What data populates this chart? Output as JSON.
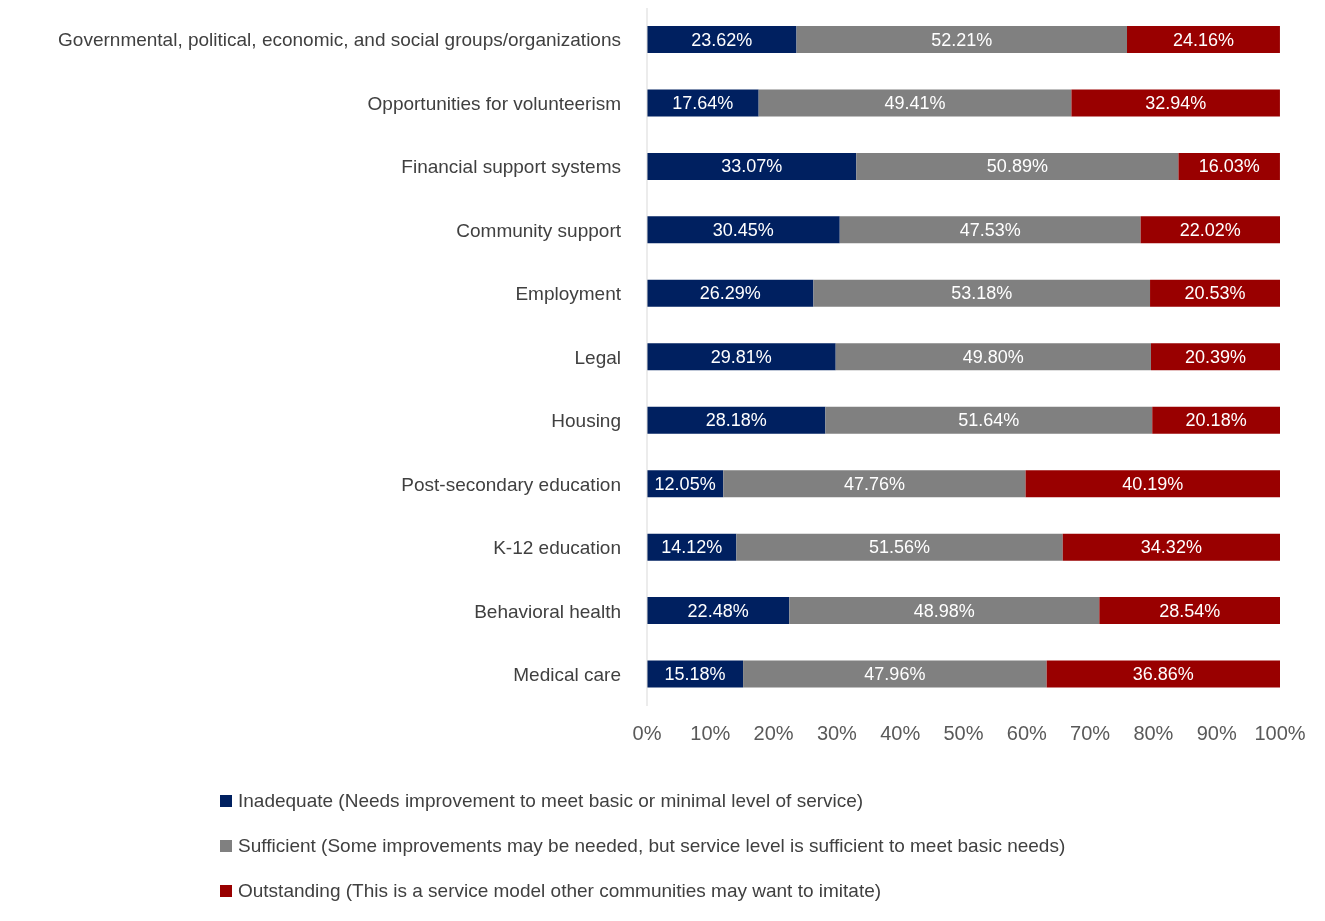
{
  "chart_data": {
    "type": "bar",
    "orientation": "horizontal",
    "stacked": true,
    "categories": [
      "Governmental, political, economic, and social groups/organizations",
      "Opportunities for volunteerism",
      "Financial support systems",
      "Community support",
      "Employment",
      "Legal",
      "Housing",
      "Post-secondary education",
      "K-12 education",
      "Behavioral health",
      "Medical care"
    ],
    "series": [
      {
        "name": "Inadequate (Needs improvement to meet basic or minimal level of service)",
        "color": "#002060",
        "values": [
          23.62,
          17.64,
          33.07,
          30.45,
          26.29,
          29.81,
          28.18,
          12.05,
          14.12,
          22.48,
          15.18
        ],
        "value_labels": [
          "23.62%",
          "17.64%",
          "33.07%",
          "30.45%",
          "26.29%",
          "29.81%",
          "28.18%",
          "12.05%",
          "14.12%",
          "22.48%",
          "15.18%"
        ]
      },
      {
        "name": "Sufficient (Some improvements may be needed, but service level is sufficient to meet basic needs)",
        "color": "#808080",
        "values": [
          52.21,
          49.41,
          50.89,
          47.53,
          53.18,
          49.8,
          51.64,
          47.76,
          51.56,
          48.98,
          47.96
        ],
        "value_labels": [
          "52.21%",
          "49.41%",
          "50.89%",
          "47.53%",
          "53.18%",
          "49.80%",
          "51.64%",
          "47.76%",
          "51.56%",
          "48.98%",
          "47.96%"
        ]
      },
      {
        "name": "Outstanding (This is a service model other communities may want to imitate)",
        "color": "#990000",
        "values": [
          24.16,
          32.94,
          16.03,
          22.02,
          20.53,
          20.39,
          20.18,
          40.19,
          34.32,
          28.54,
          36.86
        ],
        "value_labels": [
          "24.16%",
          "32.94%",
          "16.03%",
          "22.02%",
          "20.53%",
          "20.39%",
          "20.18%",
          "40.19%",
          "34.32%",
          "28.54%",
          "36.86%"
        ]
      }
    ],
    "xlim": [
      0,
      100
    ],
    "xticks": [
      {
        "value": 0,
        "label": "0%"
      },
      {
        "value": 10,
        "label": "10%"
      },
      {
        "value": 20,
        "label": "20%"
      },
      {
        "value": 30,
        "label": "30%"
      },
      {
        "value": 40,
        "label": "40%"
      },
      {
        "value": 50,
        "label": "50%"
      },
      {
        "value": 60,
        "label": "60%"
      },
      {
        "value": 70,
        "label": "70%"
      },
      {
        "value": 80,
        "label": "80%"
      },
      {
        "value": 90,
        "label": "90%"
      },
      {
        "value": 100,
        "label": "100%"
      }
    ],
    "grid": false,
    "legend": "bottom"
  }
}
